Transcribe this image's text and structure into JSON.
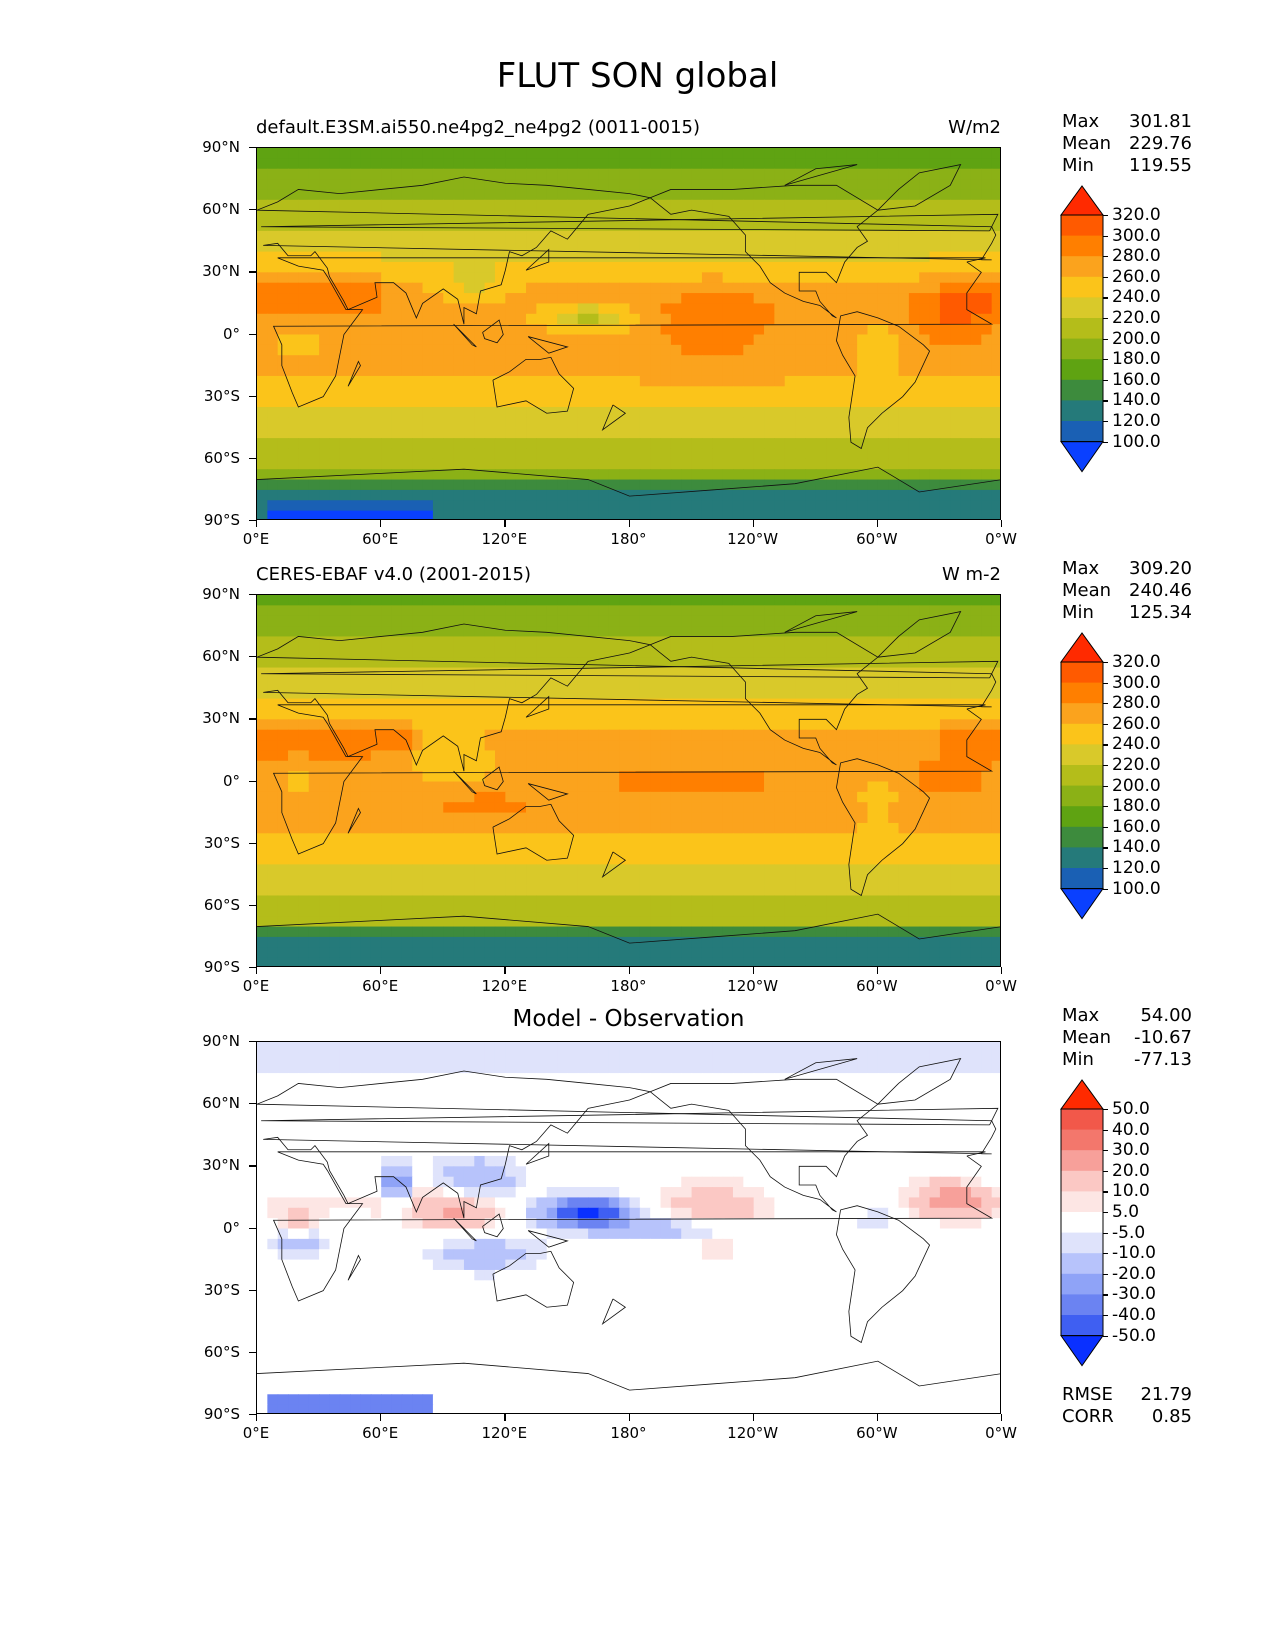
{
  "figure_title": "FLUT SON global",
  "lat_ticks": [
    "90°N",
    "60°N",
    "30°N",
    "0°",
    "30°S",
    "60°S",
    "90°S"
  ],
  "lon_ticks": [
    "0°E",
    "60°E",
    "120°E",
    "180°",
    "120°W",
    "60°W",
    "0°W"
  ],
  "panels": [
    {
      "title_left": "default.E3SM.ai550.ne4pg2_ne4pg2 (0011-0015)",
      "title_right": "W/m2",
      "title_center": "",
      "stats": [
        {
          "label": "Max",
          "value": "301.81"
        },
        {
          "label": "Mean",
          "value": "229.76"
        },
        {
          "label": "Min",
          "value": "119.55"
        }
      ],
      "colorbar": {
        "labels": [
          "320.0",
          "300.0",
          "280.0",
          "260.0",
          "240.0",
          "220.0",
          "200.0",
          "180.0",
          "160.0",
          "140.0",
          "120.0",
          "100.0"
        ],
        "colors": [
          "#ff2a00",
          "#ff5a00",
          "#ff7f00",
          "#fba31d",
          "#fbc41a",
          "#d9c92a",
          "#b4bd1a",
          "#8bb116",
          "#5fa312",
          "#3d8b3d",
          "#257a7a",
          "#1a60b4",
          "#0a40ff"
        ]
      }
    },
    {
      "title_left": "CERES-EBAF v4.0 (2001-2015)",
      "title_right": "W m-2",
      "title_center": "",
      "stats": [
        {
          "label": "Max",
          "value": "309.20"
        },
        {
          "label": "Mean",
          "value": "240.46"
        },
        {
          "label": "Min",
          "value": "125.34"
        }
      ],
      "colorbar": {
        "labels": [
          "320.0",
          "300.0",
          "280.0",
          "260.0",
          "240.0",
          "220.0",
          "200.0",
          "180.0",
          "160.0",
          "140.0",
          "120.0",
          "100.0"
        ],
        "colors": [
          "#ff2a00",
          "#ff5a00",
          "#ff7f00",
          "#fba31d",
          "#fbc41a",
          "#d9c92a",
          "#b4bd1a",
          "#8bb116",
          "#5fa312",
          "#3d8b3d",
          "#257a7a",
          "#1a60b4",
          "#0a40ff"
        ]
      }
    },
    {
      "title_left": "",
      "title_right": "",
      "title_center": "Model - Observation",
      "stats": [
        {
          "label": "Max",
          "value": "54.00"
        },
        {
          "label": "Mean",
          "value": "-10.67"
        },
        {
          "label": "Min",
          "value": "-77.13"
        }
      ],
      "extra_stats": [
        {
          "label": "RMSE",
          "value": "21.79"
        },
        {
          "label": "CORR",
          "value": "0.85"
        }
      ],
      "colorbar": {
        "labels": [
          "50.0",
          "40.0",
          "30.0",
          "20.0",
          "10.0",
          "5.0",
          "-5.0",
          "-10.0",
          "-20.0",
          "-30.0",
          "-40.0",
          "-50.0"
        ],
        "colors": [
          "#ff2a00",
          "#f2584a",
          "#f3776c",
          "#f7a09a",
          "#fbc8c4",
          "#fde6e4",
          "#ffffff",
          "#dfe3fb",
          "#b7c3fb",
          "#8fa3f7",
          "#6b83f2",
          "#3f5ff2",
          "#0a30ff"
        ]
      }
    }
  ]
}
